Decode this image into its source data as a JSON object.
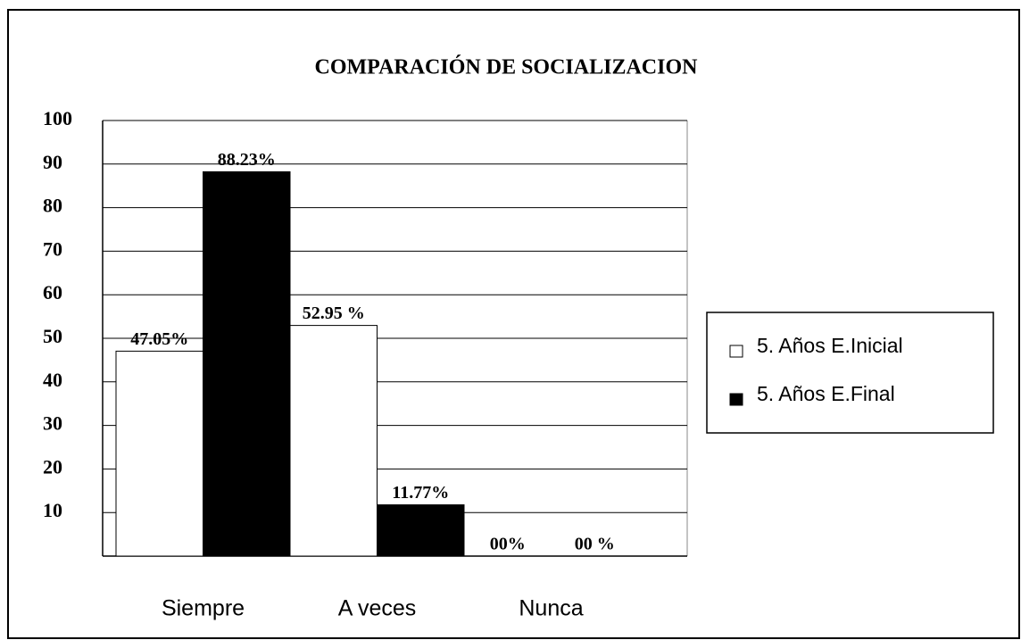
{
  "chart_data": {
    "type": "bar",
    "title": "COMPARACIÓN DE SOCIALIZACION",
    "categories": [
      "Siempre",
      "A veces",
      "Nunca"
    ],
    "series": [
      {
        "name": "5. Años E.Inicial",
        "color": "#ffffff",
        "values": [
          47.05,
          52.95,
          0
        ],
        "value_labels": [
          "47.05%",
          "52.95 %",
          "00%"
        ]
      },
      {
        "name": "5. Años E.Final",
        "color": "#000000",
        "values": [
          88.23,
          11.77,
          0
        ],
        "value_labels": [
          "88.23%",
          "11.77%",
          "00 %"
        ]
      }
    ],
    "ylim": [
      0,
      100
    ],
    "yticks": [
      10,
      20,
      30,
      40,
      50,
      60,
      70,
      80,
      90,
      100
    ],
    "grid": true,
    "legend": "right"
  }
}
